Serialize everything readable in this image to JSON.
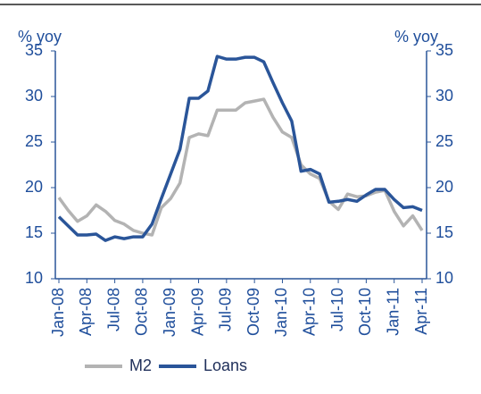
{
  "chart_data": {
    "type": "line",
    "y_label": "% yoy",
    "y2_label": "% yoy",
    "categories": [
      "Jan-08",
      null,
      null,
      "Apr-08",
      null,
      null,
      "Jul-08",
      null,
      null,
      "Oct-08",
      null,
      null,
      "Jan-09",
      null,
      null,
      "Apr-09",
      null,
      null,
      "Jul-09",
      null,
      null,
      "Oct-09",
      null,
      null,
      "Jan-10",
      null,
      null,
      "Apr-10",
      null,
      null,
      "Jul-10",
      null,
      null,
      "Oct-10",
      null,
      null,
      "Jan-11",
      null,
      null,
      "Apr-11"
    ],
    "series": [
      {
        "name": "M2",
        "color": "#b3b3b3",
        "values": [
          18.9,
          17.5,
          16.3,
          16.9,
          18.1,
          17.4,
          16.4,
          16.0,
          15.3,
          15.0,
          14.8,
          17.8,
          18.8,
          20.5,
          25.5,
          25.9,
          25.7,
          28.5,
          28.5,
          28.5,
          29.3,
          29.5,
          29.7,
          27.7,
          26.1,
          25.5,
          22.5,
          21.5,
          21.0,
          18.5,
          17.6,
          19.3,
          19.0,
          19.1,
          19.5,
          19.7,
          17.4,
          15.8,
          16.9,
          15.3
        ]
      },
      {
        "name": "Loans",
        "color": "#2a5599",
        "axis": "y2",
        "values": [
          16.8,
          15.8,
          14.8,
          14.8,
          14.9,
          14.2,
          14.6,
          14.4,
          14.6,
          14.6,
          16.0,
          18.8,
          21.5,
          24.2,
          29.8,
          29.8,
          30.6,
          34.4,
          34.1,
          34.1,
          34.3,
          34.3,
          33.8,
          31.5,
          29.3,
          27.3,
          21.8,
          22.0,
          21.5,
          18.4,
          18.5,
          18.7,
          18.5,
          19.2,
          19.8,
          19.8,
          18.7,
          17.8,
          17.9,
          17.5
        ]
      }
    ],
    "ylim": [
      10,
      35
    ],
    "yticks": [
      10,
      15,
      20,
      25,
      30,
      35
    ],
    "y2lim": [
      10,
      35
    ],
    "y2ticks": [
      10,
      15,
      20,
      25,
      30,
      35
    ],
    "grid": false,
    "legend": "bottom"
  }
}
